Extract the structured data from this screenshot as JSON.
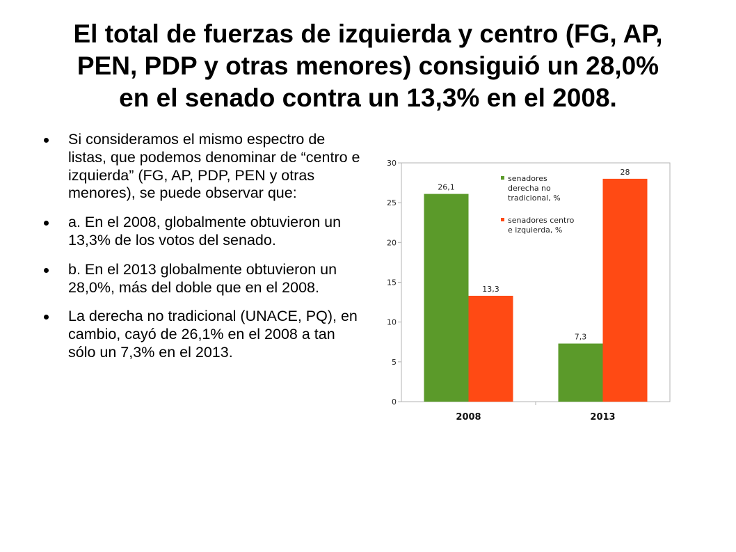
{
  "slide": {
    "title_lines": [
      "El total de fuerzas de izquierda y centro (FG, AP,",
      "PEN, PDP y otras menores) consiguió un 28,0%",
      "en el senado contra un 13,3% en el 2008."
    ],
    "bullets": [
      "Si consideramos el mismo espectro de listas, que podemos denominar de “centro e izquierda” (FG, AP, PDP, PEN y otras menores), se puede observar que:",
      "a. En el 2008, globalmente obtuvieron un 13,3% de los votos del senado.",
      "b. En el 2013 globalmente obtuvieron un 28,0%, más del doble que en el 2008.",
      "La derecha no tradicional (UNACE, PQ), en cambio, cayó de 26,1% en el 2008 a tan sólo un 7,3% en el 2013."
    ]
  },
  "chart_data": {
    "type": "bar",
    "categories": [
      "2008",
      "2013"
    ],
    "series": [
      {
        "name": "senadores derecha no tradicional, %",
        "values": [
          26.1,
          7.3
        ],
        "labels": [
          "26,1",
          "7,3"
        ],
        "color": "#5b9a2a"
      },
      {
        "name": "senadores centro e izquierda, %",
        "values": [
          13.3,
          28
        ],
        "labels": [
          "13,3",
          "28"
        ],
        "color": "#ff4a14"
      }
    ],
    "legend_lines": [
      [
        "senadores",
        "derecha no",
        "tradicional, %"
      ],
      [
        "senadores centro",
        "e izquierda, %"
      ]
    ],
    "ylim": [
      0,
      30
    ],
    "yticks": [
      "0",
      "5",
      "10",
      "15",
      "20",
      "25",
      "30"
    ],
    "title": "",
    "xlabel": "",
    "ylabel": "",
    "legend_position": "top-center",
    "grid": false
  }
}
